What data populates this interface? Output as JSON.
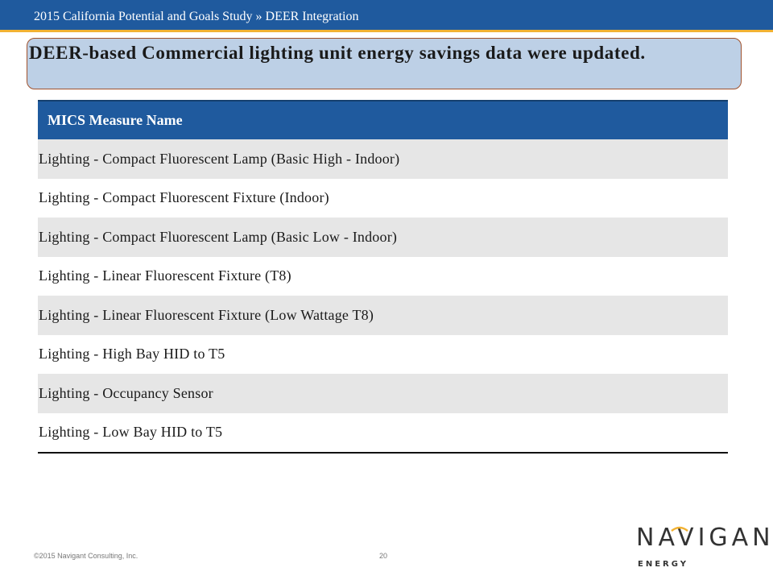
{
  "header": {
    "title": "2015 California Potential and Goals Study » DEER Integration"
  },
  "headline": "DEER-based Commercial lighting unit energy savings data were updated.",
  "table": {
    "column_header": "MICS Measure Name",
    "rows": [
      "Lighting - Compact Fluorescent Lamp (Basic High - Indoor)",
      "Lighting - Compact Fluorescent Fixture (Indoor)",
      "Lighting - Compact Fluorescent Lamp (Basic Low - Indoor)",
      "Lighting - Linear Fluorescent Fixture (T8)",
      "Lighting - Linear Fluorescent Fixture (Low Wattage T8)",
      "Lighting - High Bay HID to T5",
      "Lighting - Occupancy Sensor",
      "Lighting - Low Bay HID to T5"
    ]
  },
  "footer": {
    "copyright": "©2015 Navigant Consulting, Inc.",
    "page_number": "20"
  },
  "logo": {
    "word": "NAVIGANT",
    "sub": "ENERGY",
    "accent_color": "#f2b233",
    "icon": "navigant-logo"
  },
  "colors": {
    "brand_blue": "#1f5a9e",
    "gold_rule": "#f2b233",
    "headline_fill": "#bdd0e6",
    "row_shade": "#e6e6e6"
  }
}
